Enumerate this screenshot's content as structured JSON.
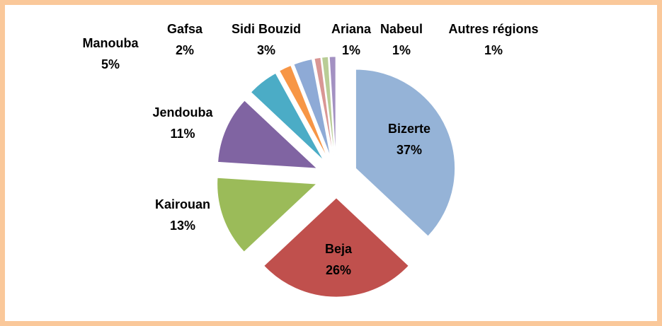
{
  "chart_data": {
    "type": "pie",
    "categories": [
      "Bizerte",
      "Beja",
      "Kairouan",
      "Jendouba",
      "Manouba",
      "Gafsa",
      "Sidi Bouzid",
      "Ariana",
      "Nabeul",
      "Autres régions"
    ],
    "values": [
      37,
      26,
      13,
      11,
      5,
      2,
      3,
      1,
      1,
      1
    ],
    "value_labels": [
      "37%",
      "26%",
      "13%",
      "11%",
      "5%",
      "2%",
      "3%",
      "1%",
      "1%",
      "1%"
    ],
    "colors": [
      "#95b3d7",
      "#c0504d",
      "#9bbb59",
      "#8064a2",
      "#4bacc6",
      "#f79646",
      "#8eaad6",
      "#d99694",
      "#b9cd96",
      "#a391c2"
    ]
  }
}
